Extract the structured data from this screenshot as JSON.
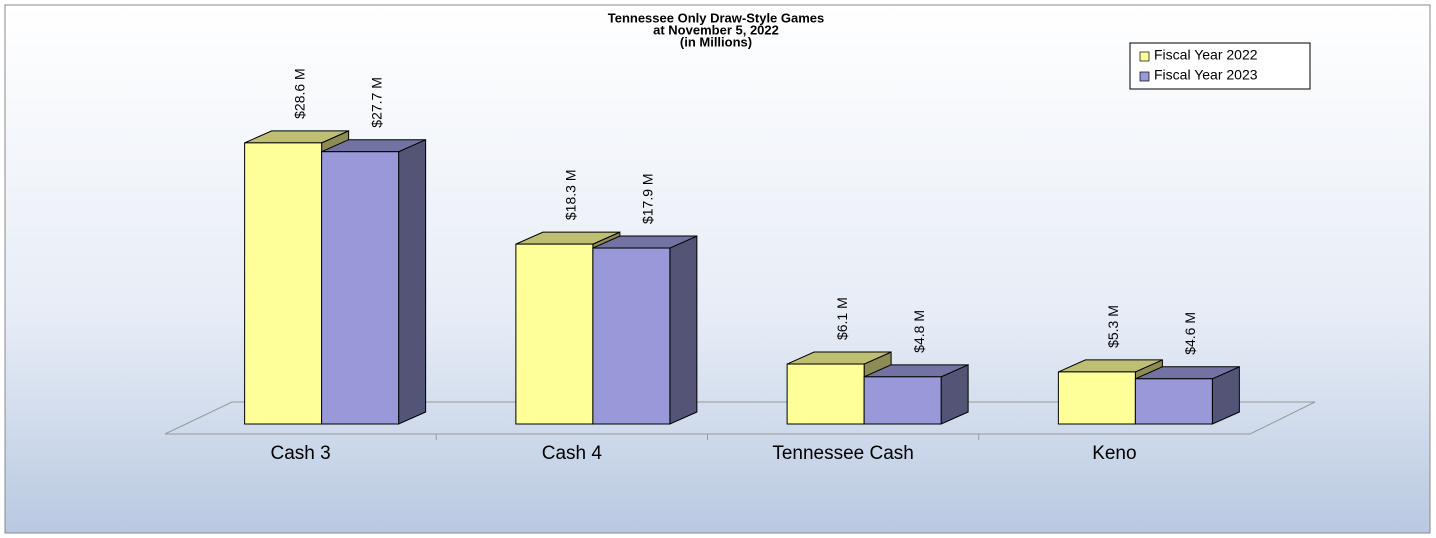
{
  "chart_data": {
    "type": "bar3d",
    "title": "Tennessee Only Draw-Style Games",
    "subtitle": [
      "at November 5, 2022",
      "(in Millions)"
    ],
    "categories": [
      "Cash 3",
      "Cash 4",
      "Tennessee Cash",
      "Keno"
    ],
    "series": [
      {
        "name": "Fiscal Year 2022",
        "color": "#ffff99",
        "values": [
          28.6,
          18.3,
          6.1,
          5.3
        ],
        "value_labels": [
          "$28.6 M",
          "$18.3 M",
          "$6.1 M",
          "$5.3 M"
        ]
      },
      {
        "name": "Fiscal Year 2023",
        "color": "#9999d9",
        "values": [
          27.7,
          17.9,
          4.8,
          4.6
        ],
        "value_labels": [
          "$27.7 M",
          "$17.9 M",
          "$4.8 M",
          "$4.6 M"
        ]
      }
    ],
    "legend": "top-right"
  }
}
